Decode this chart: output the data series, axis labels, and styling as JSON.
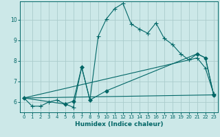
{
  "xlabel": "Humidex (Indice chaleur)",
  "background_color": "#cce8e8",
  "grid_color": "#aacccc",
  "line_color": "#006666",
  "xlim": [
    -0.5,
    23.5
  ],
  "ylim": [
    5.5,
    10.9
  ],
  "yticks": [
    6,
    7,
    8,
    9,
    10
  ],
  "xticks": [
    0,
    1,
    2,
    3,
    4,
    5,
    6,
    7,
    8,
    9,
    10,
    11,
    12,
    13,
    14,
    15,
    16,
    17,
    18,
    19,
    20,
    21,
    22,
    23
  ],
  "line1_x": [
    0,
    1,
    2,
    3,
    4,
    5,
    6,
    7,
    8,
    9,
    10,
    11,
    12,
    13,
    14,
    15,
    16,
    17,
    18,
    19,
    20,
    21,
    22,
    23
  ],
  "line1_y": [
    6.2,
    5.8,
    5.8,
    6.0,
    6.1,
    5.9,
    5.75,
    7.7,
    6.1,
    9.2,
    10.05,
    10.55,
    10.8,
    9.8,
    9.55,
    9.35,
    9.85,
    9.1,
    8.8,
    8.35,
    8.05,
    8.15,
    7.65,
    6.4
  ],
  "line2_x": [
    0,
    5,
    6,
    7,
    8,
    10,
    21,
    22,
    23
  ],
  "line2_y": [
    6.2,
    5.9,
    6.05,
    7.7,
    6.1,
    6.55,
    8.35,
    8.15,
    6.35
  ],
  "line3_x": [
    0,
    23
  ],
  "line3_y": [
    6.2,
    6.35
  ],
  "line4_x": [
    0,
    20,
    21,
    22,
    23
  ],
  "line4_y": [
    6.2,
    8.05,
    8.35,
    8.15,
    6.35
  ]
}
